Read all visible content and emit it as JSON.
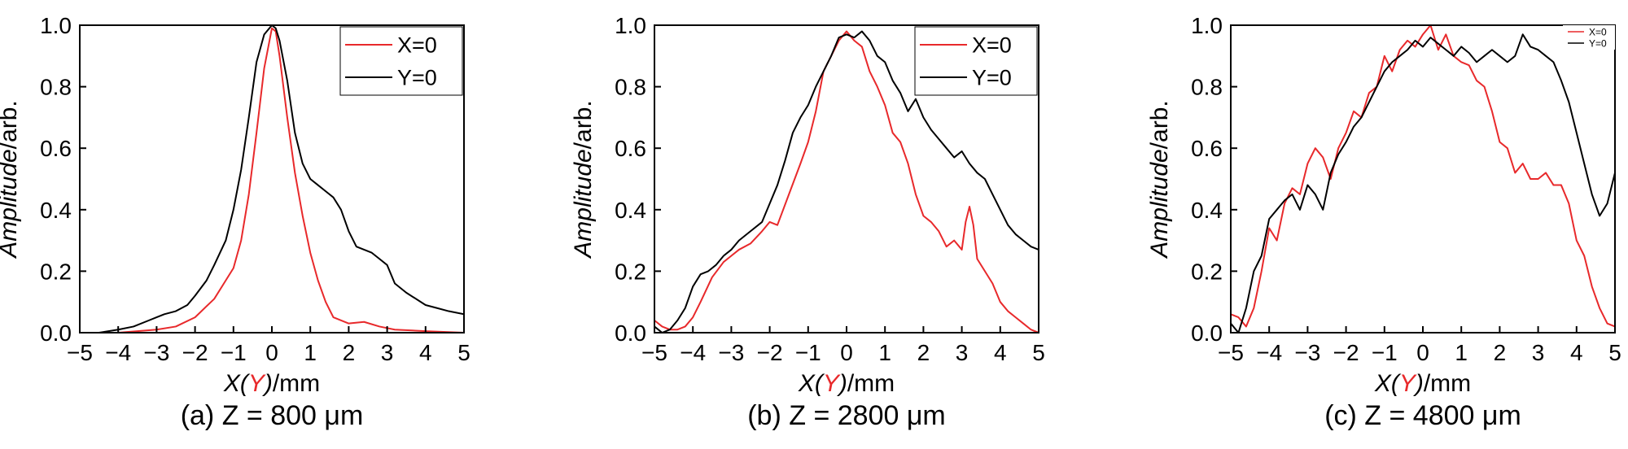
{
  "figure": {
    "panels_count": 3
  },
  "chart_data": [
    {
      "type": "line",
      "caption": "(a) Z = 800 μm",
      "xlabel_parts": [
        "X",
        "(",
        "Y",
        ")",
        "/mm"
      ],
      "ylabel_parts": [
        "Amplitude",
        "/arb."
      ],
      "xlim": [
        -5,
        5
      ],
      "ylim": [
        0,
        1.0
      ],
      "xticks": [
        "−5",
        "−4",
        "−3",
        "−2",
        "−1",
        "0",
        "1",
        "2",
        "3",
        "4",
        "5"
      ],
      "yticks": [
        "0.0",
        "0.2",
        "0.4",
        "0.6",
        "0.8",
        "1.0"
      ],
      "legend_position": "top-right",
      "legend_size": "large",
      "series": [
        {
          "name": "X=0",
          "color": "#e8292b",
          "x": [
            -5,
            -4,
            -3.5,
            -3,
            -2.5,
            -2,
            -1.5,
            -1.2,
            -1,
            -0.8,
            -0.6,
            -0.4,
            -0.2,
            0,
            0.1,
            0.2,
            0.4,
            0.6,
            0.8,
            1,
            1.2,
            1.4,
            1.6,
            2,
            2.4,
            2.8,
            3.2,
            4,
            5
          ],
          "y": [
            0,
            0,
            0.005,
            0.01,
            0.02,
            0.05,
            0.11,
            0.17,
            0.21,
            0.3,
            0.45,
            0.65,
            0.86,
            0.99,
            0.98,
            0.9,
            0.7,
            0.52,
            0.38,
            0.26,
            0.17,
            0.1,
            0.05,
            0.03,
            0.035,
            0.02,
            0.01,
            0.005,
            0
          ]
        },
        {
          "name": "Y=0",
          "color": "#000000",
          "x": [
            -5,
            -4.5,
            -4,
            -3.6,
            -3.2,
            -3,
            -2.8,
            -2.5,
            -2.2,
            -2,
            -1.7,
            -1.5,
            -1.2,
            -1,
            -0.8,
            -0.6,
            -0.4,
            -0.2,
            0,
            0.1,
            0.2,
            0.4,
            0.6,
            0.8,
            1,
            1.2,
            1.4,
            1.6,
            1.8,
            2,
            2.2,
            2.4,
            2.6,
            2.8,
            3,
            3.2,
            3.5,
            4,
            4.3,
            4.6,
            5
          ],
          "y": [
            0,
            0,
            0.01,
            0.02,
            0.04,
            0.05,
            0.06,
            0.07,
            0.09,
            0.12,
            0.17,
            0.22,
            0.3,
            0.4,
            0.53,
            0.7,
            0.88,
            0.97,
            1.0,
            0.99,
            0.95,
            0.82,
            0.65,
            0.55,
            0.5,
            0.48,
            0.46,
            0.44,
            0.4,
            0.33,
            0.28,
            0.27,
            0.26,
            0.24,
            0.22,
            0.16,
            0.13,
            0.09,
            0.08,
            0.07,
            0.06
          ]
        }
      ]
    },
    {
      "type": "line",
      "caption": "(b) Z = 2800 μm",
      "xlabel_parts": [
        "X",
        "(",
        "Y",
        ")",
        "/mm"
      ],
      "ylabel_parts": [
        "Amplitude",
        "/arb."
      ],
      "xlim": [
        -5,
        5
      ],
      "ylim": [
        0,
        1.0
      ],
      "xticks": [
        "−5",
        "−4",
        "−3",
        "−2",
        "−1",
        "0",
        "1",
        "2",
        "3",
        "4",
        "5"
      ],
      "yticks": [
        "0.0",
        "0.2",
        "0.4",
        "0.6",
        "0.8",
        "1.0"
      ],
      "legend_position": "top-right",
      "legend_size": "large",
      "series": [
        {
          "name": "X=0",
          "color": "#e8292b",
          "x": [
            -5,
            -4.8,
            -4.6,
            -4.4,
            -4.2,
            -4,
            -3.8,
            -3.5,
            -3.2,
            -3,
            -2.8,
            -2.5,
            -2.2,
            -2,
            -1.8,
            -1.5,
            -1.2,
            -1,
            -0.8,
            -0.6,
            -0.4,
            -0.2,
            0,
            0.2,
            0.4,
            0.6,
            0.8,
            1,
            1.2,
            1.4,
            1.6,
            1.8,
            2,
            2.2,
            2.4,
            2.6,
            2.8,
            3,
            3.1,
            3.2,
            3.3,
            3.4,
            3.6,
            3.8,
            4,
            4.2,
            4.4,
            4.6,
            4.8,
            5
          ],
          "y": [
            0.04,
            0.02,
            0.01,
            0.01,
            0.02,
            0.05,
            0.1,
            0.18,
            0.23,
            0.25,
            0.27,
            0.29,
            0.33,
            0.36,
            0.35,
            0.45,
            0.55,
            0.62,
            0.72,
            0.85,
            0.9,
            0.95,
            0.98,
            0.95,
            0.93,
            0.85,
            0.8,
            0.74,
            0.65,
            0.62,
            0.55,
            0.45,
            0.38,
            0.36,
            0.33,
            0.28,
            0.3,
            0.27,
            0.36,
            0.41,
            0.35,
            0.24,
            0.2,
            0.16,
            0.1,
            0.07,
            0.05,
            0.03,
            0.01,
            0
          ]
        },
        {
          "name": "Y=0",
          "color": "#000000",
          "x": [
            -5,
            -4.8,
            -4.6,
            -4.4,
            -4.2,
            -4,
            -3.8,
            -3.6,
            -3.4,
            -3.2,
            -3,
            -2.8,
            -2.5,
            -2.2,
            -2,
            -1.8,
            -1.6,
            -1.4,
            -1.2,
            -1,
            -0.8,
            -0.6,
            -0.4,
            -0.2,
            0,
            0.2,
            0.4,
            0.6,
            0.8,
            1,
            1.2,
            1.4,
            1.6,
            1.8,
            2,
            2.2,
            2.4,
            2.6,
            2.8,
            3,
            3.2,
            3.4,
            3.6,
            3.8,
            4,
            4.2,
            4.4,
            4.6,
            4.8,
            5
          ],
          "y": [
            0.02,
            0,
            0.01,
            0.04,
            0.08,
            0.15,
            0.19,
            0.2,
            0.22,
            0.25,
            0.27,
            0.3,
            0.33,
            0.36,
            0.42,
            0.48,
            0.56,
            0.65,
            0.7,
            0.74,
            0.8,
            0.85,
            0.9,
            0.96,
            0.97,
            0.96,
            0.98,
            0.95,
            0.9,
            0.88,
            0.82,
            0.78,
            0.72,
            0.76,
            0.7,
            0.66,
            0.63,
            0.6,
            0.57,
            0.59,
            0.55,
            0.52,
            0.5,
            0.45,
            0.4,
            0.35,
            0.32,
            0.3,
            0.28,
            0.27
          ]
        }
      ]
    },
    {
      "type": "line",
      "caption": "(c) Z = 4800 μm",
      "xlabel_parts": [
        "X",
        "(",
        "Y",
        ")",
        "/mm"
      ],
      "ylabel_parts": [
        "Amplitude",
        "/arb."
      ],
      "xlim": [
        -5,
        5
      ],
      "ylim": [
        0,
        1.0
      ],
      "xticks": [
        "−5",
        "−4",
        "−3",
        "−2",
        "−1",
        "0",
        "1",
        "2",
        "3",
        "4",
        "5"
      ],
      "yticks": [
        "0.0",
        "0.2",
        "0.4",
        "0.6",
        "0.8",
        "1.0"
      ],
      "legend_position": "top-right",
      "legend_size": "small",
      "series": [
        {
          "name": "X=0",
          "color": "#e8292b",
          "x": [
            -5,
            -4.8,
            -4.6,
            -4.4,
            -4.2,
            -4,
            -3.8,
            -3.6,
            -3.4,
            -3.2,
            -3,
            -2.8,
            -2.6,
            -2.4,
            -2.2,
            -2,
            -1.8,
            -1.6,
            -1.4,
            -1.2,
            -1,
            -0.8,
            -0.6,
            -0.4,
            -0.2,
            0,
            0.2,
            0.4,
            0.6,
            0.8,
            1,
            1.2,
            1.4,
            1.6,
            1.8,
            2,
            2.2,
            2.4,
            2.6,
            2.8,
            3,
            3.2,
            3.4,
            3.6,
            3.8,
            4,
            4.2,
            4.4,
            4.6,
            4.8,
            5
          ],
          "y": [
            0.06,
            0.05,
            0.02,
            0.08,
            0.2,
            0.34,
            0.3,
            0.42,
            0.47,
            0.45,
            0.55,
            0.6,
            0.57,
            0.5,
            0.6,
            0.65,
            0.72,
            0.7,
            0.78,
            0.8,
            0.9,
            0.85,
            0.92,
            0.95,
            0.93,
            0.97,
            1.0,
            0.92,
            0.97,
            0.9,
            0.88,
            0.87,
            0.82,
            0.8,
            0.72,
            0.62,
            0.6,
            0.52,
            0.55,
            0.5,
            0.5,
            0.52,
            0.48,
            0.48,
            0.42,
            0.3,
            0.25,
            0.15,
            0.08,
            0.03,
            0.02
          ]
        },
        {
          "name": "Y=0",
          "color": "#000000",
          "x": [
            -5,
            -4.8,
            -4.6,
            -4.4,
            -4.2,
            -4,
            -3.8,
            -3.6,
            -3.4,
            -3.2,
            -3,
            -2.8,
            -2.6,
            -2.4,
            -2.2,
            -2,
            -1.8,
            -1.6,
            -1.4,
            -1.2,
            -1,
            -0.8,
            -0.6,
            -0.4,
            -0.2,
            0,
            0.2,
            0.4,
            0.6,
            0.8,
            1,
            1.2,
            1.4,
            1.6,
            1.8,
            2,
            2.2,
            2.4,
            2.6,
            2.8,
            3,
            3.2,
            3.4,
            3.6,
            3.8,
            4,
            4.2,
            4.4,
            4.6,
            4.8,
            5
          ],
          "y": [
            0.03,
            0,
            0.08,
            0.2,
            0.25,
            0.37,
            0.4,
            0.43,
            0.45,
            0.4,
            0.48,
            0.45,
            0.4,
            0.52,
            0.58,
            0.62,
            0.67,
            0.7,
            0.75,
            0.8,
            0.85,
            0.88,
            0.9,
            0.92,
            0.95,
            0.93,
            0.96,
            0.94,
            0.92,
            0.9,
            0.93,
            0.91,
            0.88,
            0.9,
            0.92,
            0.9,
            0.88,
            0.9,
            0.97,
            0.93,
            0.92,
            0.9,
            0.88,
            0.82,
            0.75,
            0.65,
            0.55,
            0.45,
            0.38,
            0.42,
            0.52
          ]
        }
      ]
    }
  ]
}
